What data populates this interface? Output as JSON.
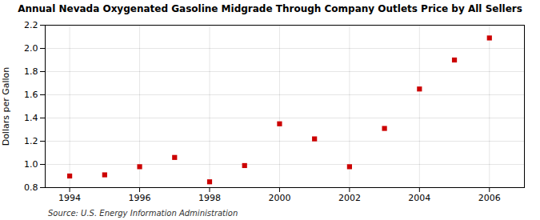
{
  "chart_data": {
    "type": "scatter",
    "title": "Annual Nevada Oxygenated Gasoline Midgrade Through Company Outlets Price by All Sellers",
    "ylabel": "Dollars per Gallon",
    "annotation": "Source: U.S. Energy Information Administration",
    "x": [
      1994,
      1995,
      1996,
      1997,
      1998,
      1999,
      2000,
      2001,
      2002,
      2003,
      2004,
      2005,
      2006
    ],
    "values": [
      0.9,
      0.91,
      0.98,
      1.06,
      0.85,
      0.99,
      1.35,
      1.22,
      0.98,
      1.31,
      1.65,
      1.9,
      2.09
    ],
    "color": "#cc0000",
    "marker": "square",
    "xlim": [
      1993.3,
      2007.0
    ],
    "ylim": [
      0.8,
      2.2
    ],
    "xticks": [
      1994,
      1996,
      1998,
      2000,
      2002,
      2004,
      2006
    ],
    "yticks": [
      0.8,
      {
        "value": 1.0,
        "label": "1.0"
      },
      1.2,
      1.4,
      1.6,
      1.8,
      {
        "value": 2.0,
        "label": "2.0"
      },
      2.2
    ],
    "grid": true
  }
}
